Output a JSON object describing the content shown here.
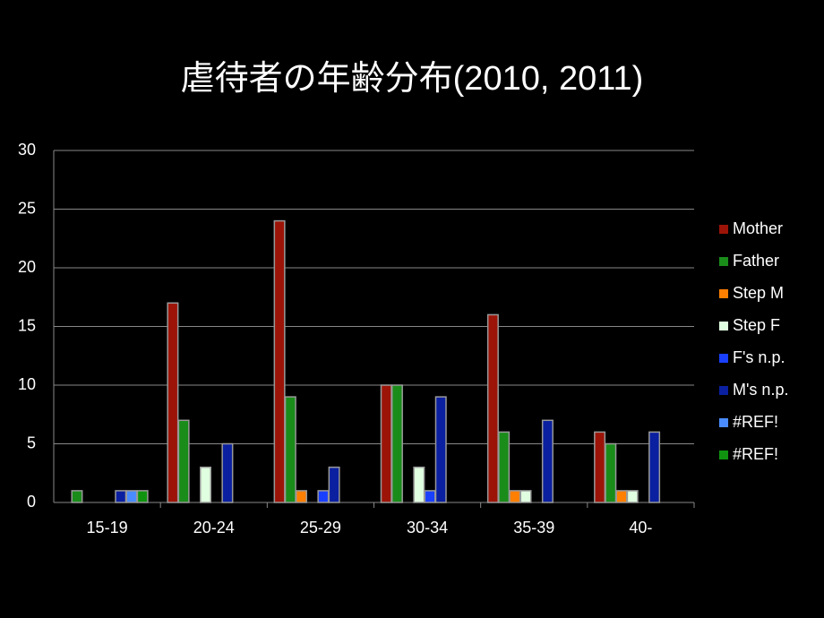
{
  "chart_data": {
    "type": "bar",
    "title": "虐待者の年齢分布(2010, 2011)",
    "categories": [
      "15-19",
      "20-24",
      "25-29",
      "30-34",
      "35-39",
      "40-"
    ],
    "series": [
      {
        "name": "Mother",
        "color": "#9c1408",
        "values": [
          0,
          17,
          24,
          10,
          16,
          6
        ]
      },
      {
        "name": "Father",
        "color": "#1a8c1a",
        "values": [
          1,
          7,
          9,
          10,
          6,
          5
        ]
      },
      {
        "name": "Step M",
        "color": "#ff7f00",
        "values": [
          0,
          0,
          1,
          0,
          1,
          1
        ]
      },
      {
        "name": "Step F",
        "color": "#e0ffe0",
        "values": [
          0,
          3,
          0,
          3,
          1,
          1
        ]
      },
      {
        "name": "F's n.p.",
        "color": "#1a40ff",
        "values": [
          0,
          0,
          1,
          1,
          0,
          0
        ]
      },
      {
        "name": "M's n.p.",
        "color": "#0a20a0",
        "values": [
          1,
          5,
          3,
          9,
          7,
          6
        ]
      },
      {
        "name": "#REF!",
        "color": "#4a8cff",
        "values": [
          1,
          0,
          0,
          0,
          0,
          0
        ]
      },
      {
        "name": "#REF!",
        "color": "#109410",
        "values": [
          1,
          0,
          0,
          0,
          0,
          0
        ]
      }
    ],
    "ylim": [
      0,
      30
    ],
    "yticks": [
      0,
      5,
      10,
      15,
      20,
      25,
      30
    ],
    "grid": true,
    "legend": "right"
  }
}
